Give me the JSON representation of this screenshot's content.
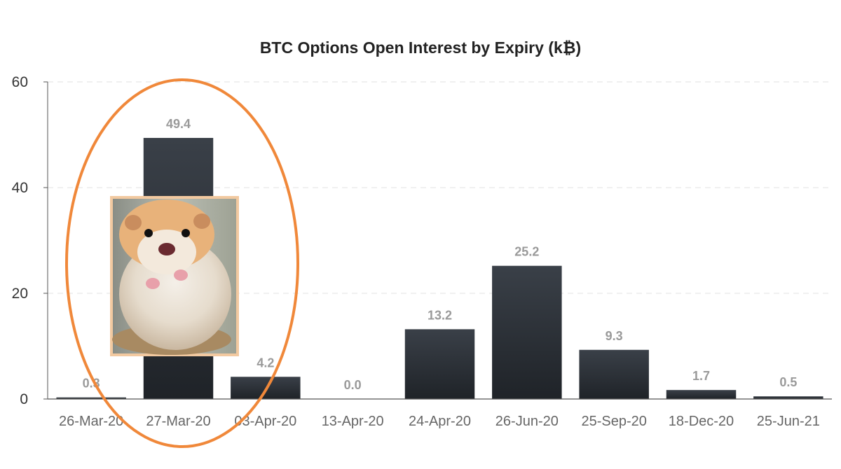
{
  "chart_data": {
    "type": "bar",
    "title": "BTC Options Open Interest by Expiry (k₿)",
    "xlabel": "",
    "ylabel": "",
    "categories": [
      "26-Mar-20",
      "27-Mar-20",
      "03-Apr-20",
      "13-Apr-20",
      "24-Apr-20",
      "26-Jun-20",
      "25-Sep-20",
      "18-Dec-20",
      "25-Jun-21"
    ],
    "values": [
      0.3,
      49.4,
      4.2,
      0.0,
      13.2,
      25.2,
      9.3,
      1.7,
      0.5
    ],
    "data_labels": [
      "0.3",
      "49.4",
      "4.2",
      "0.0",
      "13.2",
      "25.2",
      "9.3",
      "1.7",
      "0.5"
    ],
    "ylim": [
      0,
      60
    ],
    "yticks": [
      0,
      20,
      40,
      60
    ],
    "grid": true,
    "legend": "none",
    "colors": {
      "bar": "#2d333b",
      "data_label": "#9a9a9a",
      "highlight_ellipse": "#f0883a"
    },
    "annotations": {
      "highlight": "ellipse around 26-Mar-20 to 03-Apr-20",
      "image": "hamster-photo"
    }
  }
}
